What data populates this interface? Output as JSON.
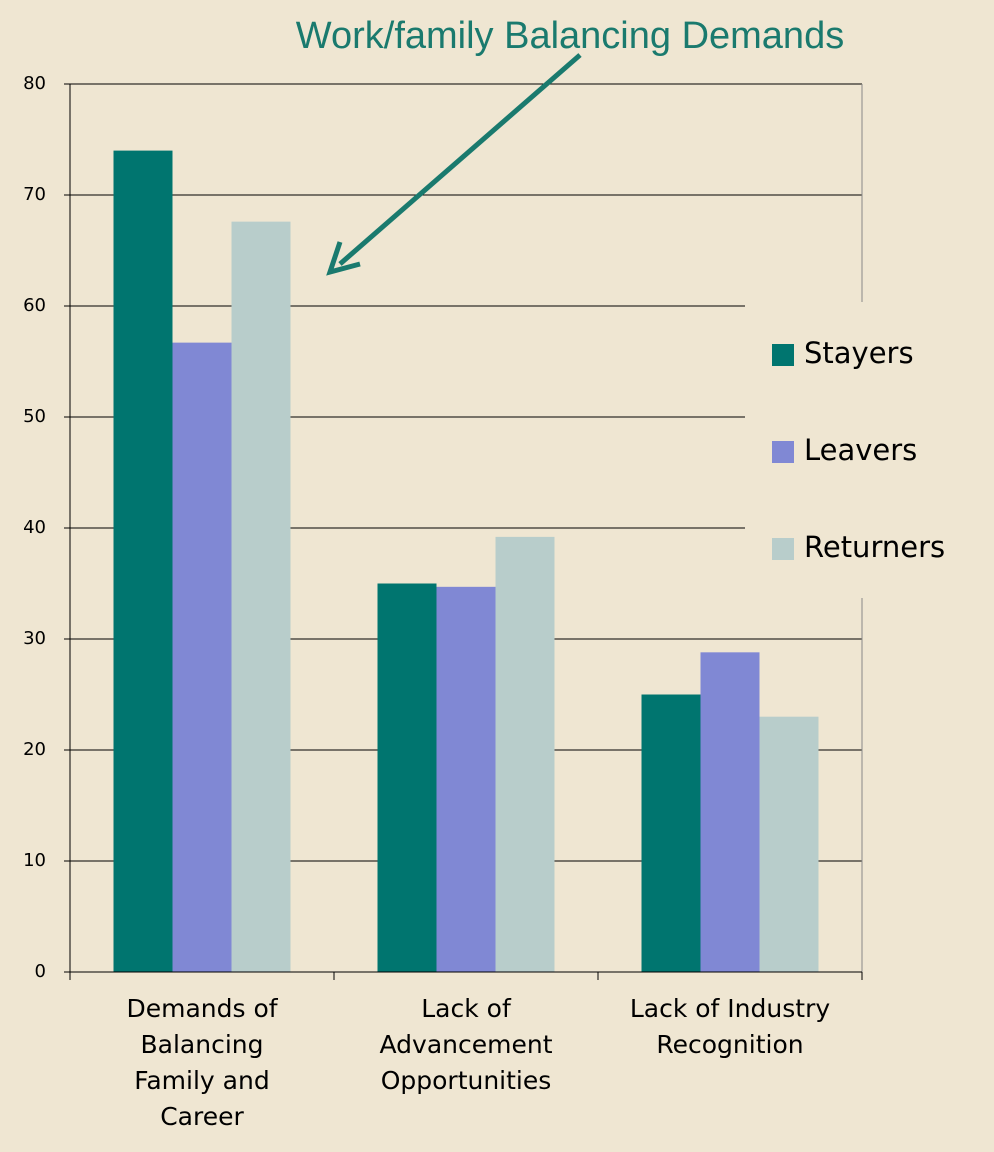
{
  "chart_data": {
    "type": "bar",
    "title": "Work/family Balancing Demands",
    "categories": [
      "Demands of\nBalancing\nFamily and\nCareer",
      "Lack of\nAdvancement\nOpportunities",
      "Lack of Industry\nRecognition"
    ],
    "series": [
      {
        "name": "Stayers",
        "color": "#00756f",
        "values": [
          74,
          35,
          25
        ]
      },
      {
        "name": "Leavers",
        "color": "#8088d4",
        "values": [
          56.7,
          34.7,
          28.8
        ]
      },
      {
        "name": "Returners",
        "color": "#b8cdcb",
        "values": [
          67.6,
          39.2,
          23
        ]
      }
    ],
    "ylim": [
      0,
      80
    ],
    "yticks": [
      0,
      10,
      20,
      30,
      40,
      50,
      60,
      70,
      80
    ],
    "grid": true,
    "legend": "right"
  }
}
